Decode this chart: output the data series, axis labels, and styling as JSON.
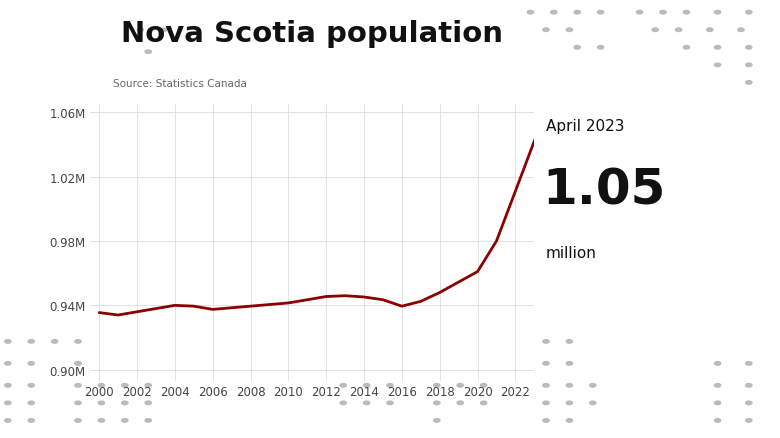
{
  "title": "Nova Scotia population",
  "source": "Source: Statistics Canada",
  "annotation_line1": "April 2023",
  "annotation_line2": "1.05",
  "annotation_line3": "million",
  "line_color": "#8b0000",
  "background_color": "#ffffff",
  "ylim": [
    0.893,
    1.065
  ],
  "yticks": [
    0.9,
    0.94,
    0.98,
    1.02,
    1.06
  ],
  "ytick_labels": [
    "0.90M",
    "0.94M",
    "0.98M",
    "1.02M",
    "1.06M"
  ],
  "xticks": [
    2000,
    2002,
    2004,
    2006,
    2008,
    2010,
    2012,
    2014,
    2016,
    2018,
    2020,
    2022
  ],
  "years": [
    2000,
    2001,
    2002,
    2003,
    2004,
    2005,
    2006,
    2007,
    2008,
    2009,
    2010,
    2011,
    2012,
    2013,
    2014,
    2015,
    2016,
    2017,
    2018,
    2019,
    2020,
    2021,
    2022,
    2023.25
  ],
  "population": [
    0.9355,
    0.934,
    0.936,
    0.938,
    0.94,
    0.9395,
    0.9375,
    0.9385,
    0.9395,
    0.9405,
    0.9415,
    0.9435,
    0.9455,
    0.946,
    0.9452,
    0.9435,
    0.9395,
    0.9425,
    0.948,
    0.9545,
    0.961,
    0.98,
    1.011,
    1.05
  ],
  "dot_color": "#bbbbbb",
  "xlim": [
    1999.5,
    2023.0
  ]
}
